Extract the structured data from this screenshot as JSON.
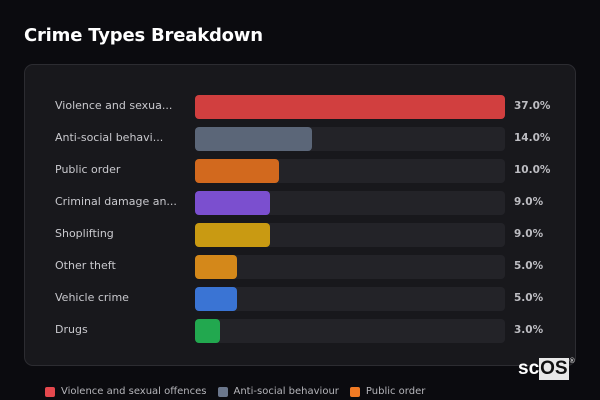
{
  "title": "Crime Types Breakdown",
  "chart_data": {
    "type": "bar",
    "orientation": "horizontal",
    "title": "Crime Types Breakdown",
    "categories": [
      "Violence and sexual offences",
      "Anti-social behaviour",
      "Public order",
      "Criminal damage and arson",
      "Shoplifting",
      "Other theft",
      "Vehicle crime",
      "Drugs"
    ],
    "display_labels": [
      "Violence and sexua...",
      "Anti-social behavi...",
      "Public order",
      "Criminal damage an...",
      "Shoplifting",
      "Other theft",
      "Vehicle crime",
      "Drugs"
    ],
    "values": [
      37.0,
      14.0,
      10.0,
      9.0,
      9.0,
      5.0,
      5.0,
      3.0
    ],
    "value_labels": [
      "37.0%",
      "14.0%",
      "10.0%",
      "9.0%",
      "9.0%",
      "5.0%",
      "5.0%",
      "3.0%"
    ],
    "colors": [
      "#d13f3f",
      "#5b6678",
      "#d2691e",
      "#7b4fcf",
      "#c99a12",
      "#d4881a",
      "#3a74d4",
      "#22a84f"
    ],
    "xlim": [
      0,
      37
    ],
    "unit": "%",
    "grid": false,
    "legend_position": "bottom"
  },
  "legend": [
    {
      "label": "Violence and sexual offences",
      "color": "#e5484d"
    },
    {
      "label": "Anti-social behaviour",
      "color": "#6b778c"
    },
    {
      "label": "Public order",
      "color": "#f07a24"
    }
  ],
  "watermark": {
    "prefix": "sc",
    "boxed": "OS",
    "mark": "®"
  }
}
